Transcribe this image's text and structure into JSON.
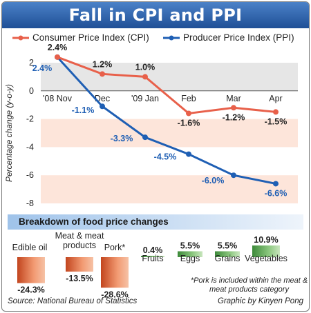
{
  "header": {
    "title": "Fall in CPI and PPI"
  },
  "legend": {
    "cpi_label": "Consumer Price Index (CPI)",
    "ppi_label": "Producer Price Index (PPI)"
  },
  "colors": {
    "cpi": "#e8604a",
    "ppi": "#1f5fb4",
    "band": "#fde5da",
    "grid_band": "#e6e6e6",
    "title_bar": "#2a5ea8"
  },
  "chart_data": [
    {
      "type": "line",
      "x": [
        "'08 Nov",
        "Dec",
        "'09 Jan",
        "Feb",
        "Mar",
        "Apr"
      ],
      "series": [
        {
          "name": "Consumer Price Index (CPI)",
          "values": [
            2.4,
            1.2,
            1.0,
            -1.6,
            -1.2,
            -1.5
          ],
          "labels": [
            "2.4%",
            "1.2%",
            "1.0%",
            "-1.6%",
            "-1.2%",
            "-1.5%"
          ]
        },
        {
          "name": "Producer Price Index (PPI)",
          "values": [
            2.4,
            -1.1,
            -3.3,
            -4.5,
            -6.0,
            -6.6
          ],
          "labels": [
            "2.4%",
            "-1.1%",
            "-3.3%",
            "-4.5%",
            "-6.0%",
            "-6.6%"
          ]
        }
      ],
      "ylabel": "Percentage change (y-o-y)",
      "yticks": [
        2,
        0,
        -2,
        -4,
        -6,
        -8
      ],
      "ylim": [
        -8,
        2
      ]
    },
    {
      "type": "bar",
      "title": "Breakdown of food price changes",
      "categories": [
        "Edible oil",
        "Meat & meat products",
        "Pork*",
        "Fruits",
        "Eggs",
        "Grains",
        "Vegetables"
      ],
      "values": [
        -24.3,
        -13.5,
        -28.6,
        0.4,
        5.5,
        5.5,
        10.9
      ],
      "labels": [
        "-24.3%",
        "-13.5%",
        "-28.6%",
        "0.4%",
        "5.5%",
        "5.5%",
        "10.9%"
      ]
    }
  ],
  "footnote": "*Pork is included within the meat & meat products category",
  "footer": {
    "source": "Source: National Bureau of Statistics",
    "credit": "Graphic by Kinyen Pong"
  }
}
